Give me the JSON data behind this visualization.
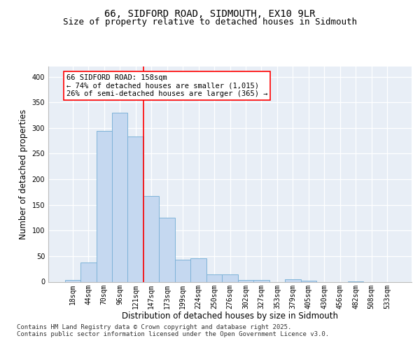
{
  "title_line1": "66, SIDFORD ROAD, SIDMOUTH, EX10 9LR",
  "title_line2": "Size of property relative to detached houses in Sidmouth",
  "xlabel": "Distribution of detached houses by size in Sidmouth",
  "ylabel": "Number of detached properties",
  "categories": [
    "18sqm",
    "44sqm",
    "70sqm",
    "96sqm",
    "121sqm",
    "147sqm",
    "173sqm",
    "199sqm",
    "224sqm",
    "250sqm",
    "276sqm",
    "302sqm",
    "327sqm",
    "353sqm",
    "379sqm",
    "405sqm",
    "430sqm",
    "456sqm",
    "482sqm",
    "508sqm",
    "533sqm"
  ],
  "values": [
    3,
    38,
    295,
    330,
    283,
    168,
    125,
    43,
    46,
    14,
    15,
    4,
    4,
    0,
    5,
    2,
    0,
    0,
    1,
    0,
    0
  ],
  "bar_color": "#C5D8F0",
  "bar_edge_color": "#7EB3D8",
  "background_color": "#E8EEF6",
  "grid_color": "#FFFFFF",
  "annotation_text": "66 SIDFORD ROAD: 158sqm\n← 74% of detached houses are smaller (1,015)\n26% of semi-detached houses are larger (365) →",
  "vline_x": 4.5,
  "ylim": [
    0,
    420
  ],
  "yticks": [
    0,
    50,
    100,
    150,
    200,
    250,
    300,
    350,
    400
  ],
  "footer_text": "Contains HM Land Registry data © Crown copyright and database right 2025.\nContains public sector information licensed under the Open Government Licence v3.0.",
  "title_fontsize": 10,
  "subtitle_fontsize": 9,
  "ylabel_fontsize": 8.5,
  "xlabel_fontsize": 8.5,
  "tick_fontsize": 7,
  "annot_fontsize": 7.5,
  "footer_fontsize": 6.5
}
